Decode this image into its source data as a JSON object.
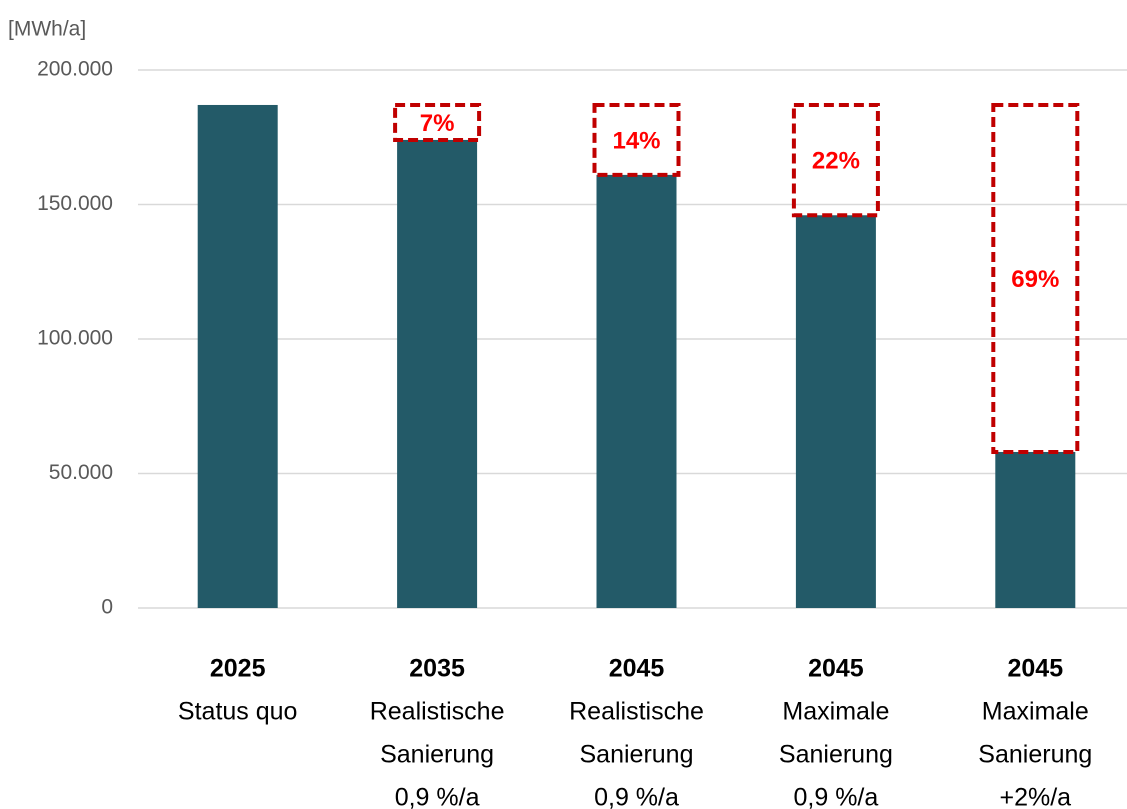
{
  "chart_data": {
    "type": "bar",
    "y_label": "[MWh/a]",
    "categories": [
      [
        "2025",
        "Status quo"
      ],
      [
        "2035",
        "Realistische",
        "Sanierung",
        "0,9 %/a"
      ],
      [
        "2045",
        "Realistische",
        "Sanierung",
        "0,9 %/a"
      ],
      [
        "2045",
        "Maximale",
        "Sanierung",
        "0,9 %/a"
      ],
      [
        "2045",
        "Maximale",
        "Sanierung",
        "+2%/a"
      ]
    ],
    "series": [
      {
        "color": "#235a68",
        "values": [
          187000,
          174000,
          161000,
          146000,
          58000
        ]
      },
      {
        "color": "#c00000",
        "values": [
          null,
          13000,
          26000,
          41000,
          129000
        ]
      }
    ],
    "annotations": [
      null,
      "7%",
      "14%",
      "22%",
      "69%"
    ],
    "ylim": [
      0,
      200000
    ],
    "yticks": [
      0,
      {
        "value": 50000,
        "label": "50.000"
      },
      {
        "value": 100000,
        "label": "100.000"
      },
      {
        "value": 150000,
        "label": "150.000"
      },
      {
        "value": 200000,
        "label": "200.000"
      }
    ],
    "grid": true
  }
}
